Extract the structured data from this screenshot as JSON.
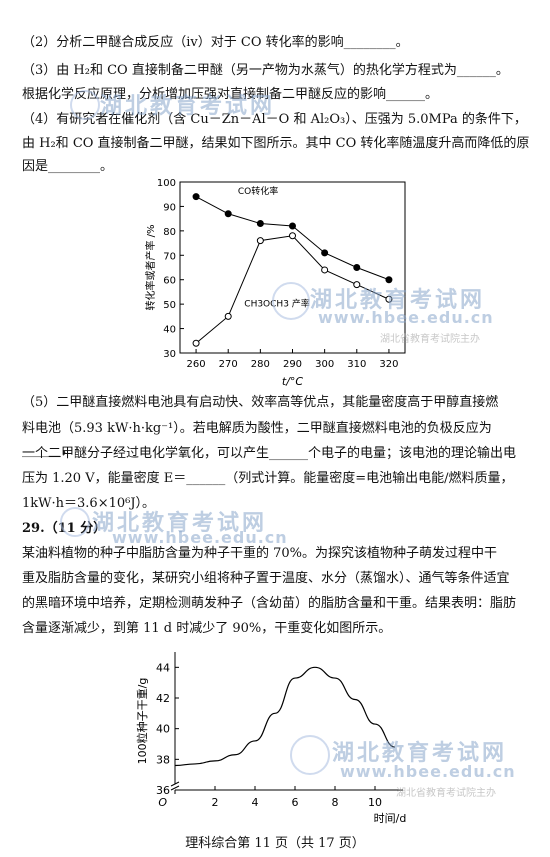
{
  "paragraphs": {
    "q2": "（2）分析二甲醚合成反应（iv）对于 CO 转化率的影响________。",
    "q3a": "（3）由 H₂和 CO 直接制备二甲醚（另一产物为水蒸气）的热化学方程式为______。",
    "q3b": "根据化学反应原理，分析增加压强对直接制备二甲醚反应的影响______。",
    "q4a": "（4）有研究者在催化剂（含 Cu－Zn－Al－O 和 Al₂O₃）、压强为 5.0MPa 的条件下，",
    "q4b": "由 H₂和 CO 直接制备二甲醚，结果如下图所示。其中 CO 转化率随温度升高而降低的原",
    "q4c": "因是________。",
    "q5a": "（5）二甲醚直接燃料电池具有启动快、效率高等优点，其能量密度高于甲醇直接燃",
    "q5b": "料电池（5.93 kW·h·kg⁻¹）。若电解质为酸性，二甲醚直接燃料电池的负极反应为______，",
    "q5c": "一个二甲醚分子经过电化学氧化，可以产生______个电子的电量；该电池的理论输出电",
    "q5d": "压为 1.20 V，能量密度 E＝______（列式计算。能量密度=电池输出电能/燃料质量，",
    "q5e": "1kW·h＝3.6×10⁶J）。",
    "q29": "29.（11 分）",
    "q29a": "某油料植物的种子中脂肪含量为种子干重的 70%。为探究该植物种子萌发过程中干",
    "q29b": "重及脂肪含量的变化，某研究小组将种子置于温度、水分（蒸馏水）、通气等条件适宜",
    "q29c": "的黑暗环境中培养，定期检测萌发种子（含幼苗）的脂肪含量和干重。结果表明：脂肪",
    "q29d": "含量逐渐减少，到第 11 d 时减少了 90%，干重变化如图所示。"
  },
  "watermark": {
    "title": "湖北教育考试网",
    "url": "www.hbee.edu.cn",
    "sub": "湖北省教育考试院主办"
  },
  "footer": "理科综合第 11 页（共 17 页）",
  "chart_data": [
    {
      "type": "line",
      "xlabel": "t/°C",
      "ylabel": "转化率或者产率 /%",
      "x": [
        260,
        270,
        280,
        290,
        300,
        310,
        320
      ],
      "xlim": [
        255,
        325
      ],
      "ylim": [
        30,
        100
      ],
      "xticks": [
        "260",
        "270",
        "280",
        "290",
        "300",
        "310",
        "320"
      ],
      "yticks": [
        "30",
        "40",
        "50",
        "60",
        "70",
        "80",
        "90",
        "100"
      ],
      "series": [
        {
          "name": "CO转化率",
          "marker": "filled",
          "values": [
            94,
            87,
            83,
            82,
            71,
            65,
            60
          ]
        },
        {
          "name": "CH3OCH3 产率",
          "marker": "open",
          "values": [
            34,
            45,
            76,
            78,
            64,
            58,
            52
          ]
        }
      ]
    },
    {
      "type": "line",
      "xlabel": "时间/d",
      "ylabel": "100粒种子干重/g",
      "origin_label": "O",
      "xlim": [
        0,
        11
      ],
      "ylim": [
        36,
        45
      ],
      "xticks": [
        "2",
        "4",
        "6",
        "8",
        "10"
      ],
      "yticks": [
        "36",
        "38",
        "40",
        "42",
        "44"
      ],
      "series": [
        {
          "name": "",
          "x": [
            0,
            1,
            2,
            3,
            4,
            5,
            6,
            7,
            8,
            9,
            10,
            11
          ],
          "values": [
            37.6,
            37.7,
            37.9,
            38.3,
            39.2,
            41.0,
            43.3,
            44.0,
            43.3,
            41.9,
            40.3,
            38.8
          ]
        }
      ]
    }
  ]
}
